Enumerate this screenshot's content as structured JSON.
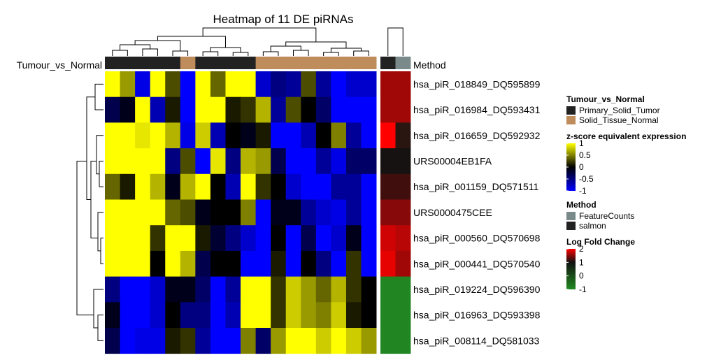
{
  "chart_data": {
    "type": "heatmap",
    "title": "Heatmap of 11 DE piRNAs",
    "rows": [
      "hsa_piR_018849_DQ595899",
      "hsa_piR_016984_DQ593431",
      "hsa_piR_016659_DQ592932",
      "URS00004EB1FA",
      "hsa_piR_001159_DQ571511",
      "URS0000475CEE",
      "hsa_piR_000560_DQ570698",
      "hsa_piR_000441_DQ570540",
      "hsa_piR_019224_DQ596390",
      "hsa_piR_016963_DQ593398",
      "hsa_piR_008114_DQ581033"
    ],
    "z_scores": [
      [
        1.0,
        0.6,
        -0.9,
        1.0,
        0.3,
        -1.0,
        1.0,
        0.4,
        1.0,
        1.0,
        -0.8,
        -0.5,
        -0.6,
        0.3,
        -0.6,
        -1.0,
        -0.8,
        -0.8
      ],
      [
        -0.3,
        -0.1,
        1.0,
        -0.7,
        0.1,
        -1.0,
        1.0,
        1.0,
        0.1,
        0.2,
        0.7,
        -0.6,
        0.3,
        0.0,
        -0.4,
        -1.0,
        -1.0,
        -1.0
      ],
      [
        1.0,
        1.0,
        0.9,
        1.0,
        0.7,
        -0.9,
        0.8,
        -0.7,
        0.0,
        -0.1,
        0.1,
        -1.0,
        -1.0,
        -0.7,
        0.0,
        0.5,
        -0.6,
        -1.0
      ],
      [
        1.0,
        1.0,
        1.0,
        1.0,
        -0.5,
        0.3,
        -1.0,
        0.9,
        -0.5,
        0.7,
        0.6,
        -0.3,
        -1.0,
        -1.0,
        -0.6,
        -0.9,
        -0.4,
        -0.4
      ],
      [
        0.4,
        0.1,
        1.0,
        0.7,
        -0.1,
        0.7,
        1.0,
        0.0,
        -0.7,
        1.0,
        0.2,
        0.0,
        -0.8,
        -1.0,
        -1.0,
        -0.6,
        -0.6,
        -1.0
      ],
      [
        1.0,
        1.0,
        1.0,
        1.0,
        0.4,
        0.3,
        -0.1,
        0.0,
        0.0,
        0.5,
        -1.0,
        -0.1,
        -0.1,
        -0.6,
        -0.8,
        -0.9,
        -0.6,
        -1.0
      ],
      [
        1.0,
        1.0,
        1.0,
        0.2,
        1.0,
        1.0,
        0.1,
        -0.2,
        -0.5,
        -0.8,
        -1.0,
        0.0,
        -1.0,
        -0.3,
        -1.0,
        -0.8,
        -0.1,
        -1.0
      ],
      [
        1.0,
        1.0,
        1.0,
        0.0,
        1.0,
        0.7,
        -0.3,
        0.0,
        0.0,
        -1.0,
        -1.0,
        0.1,
        -1.0,
        0.0,
        -0.5,
        -1.0,
        0.2,
        -1.0
      ],
      [
        -0.5,
        -1.0,
        -1.0,
        -0.8,
        -0.1,
        -0.1,
        -0.4,
        -1.0,
        -0.6,
        1.0,
        1.0,
        0.2,
        0.8,
        0.6,
        0.4,
        0.7,
        0.2,
        0.0
      ],
      [
        -0.1,
        -1.0,
        -1.0,
        -0.8,
        0.0,
        -0.5,
        -0.5,
        -1.0,
        -0.7,
        1.0,
        1.0,
        0.2,
        0.8,
        0.6,
        0.5,
        0.8,
        0.1,
        0.0
      ],
      [
        -0.3,
        -1.0,
        -0.9,
        -0.9,
        0.1,
        0.2,
        -0.6,
        -1.0,
        -1.0,
        0.5,
        -0.4,
        0.6,
        1.0,
        1.0,
        0.8,
        1.0,
        0.8,
        0.6
      ]
    ],
    "tumour_vs_normal": [
      "Primary_Solid_Tumor",
      "Primary_Solid_Tumor",
      "Primary_Solid_Tumor",
      "Primary_Solid_Tumor",
      "Primary_Solid_Tumor",
      "Solid_Tissue_Normal",
      "Primary_Solid_Tumor",
      "Primary_Solid_Tumor",
      "Primary_Solid_Tumor",
      "Primary_Solid_Tumor",
      "Solid_Tissue_Normal",
      "Solid_Tissue_Normal",
      "Solid_Tissue_Normal",
      "Solid_Tissue_Normal",
      "Solid_Tissue_Normal",
      "Solid_Tissue_Normal",
      "Solid_Tissue_Normal",
      "Solid_Tissue_Normal"
    ],
    "methods": [
      "salmon",
      "FeatureCounts"
    ],
    "log_fold_change": [
      [
        1.6,
        1.6
      ],
      [
        1.6,
        1.6
      ],
      [
        2.0,
        0.4
      ],
      [
        0.9,
        0.9
      ],
      [
        1.2,
        1.2
      ],
      [
        1.5,
        1.5
      ],
      [
        1.8,
        1.7
      ],
      [
        1.9,
        1.6
      ],
      [
        -0.8,
        -0.8
      ],
      [
        -0.8,
        -0.8
      ],
      [
        -0.8,
        -0.8
      ]
    ],
    "row_annotation_label": "Tumour_vs_Normal",
    "col_annotation_label": "Method",
    "legends": {
      "group": {
        "title": "Tumour_vs_Normal",
        "items": [
          {
            "label": "Primary_Solid_Tumor",
            "color": "#222222"
          },
          {
            "label": "Solid_Tissue_Normal",
            "color": "#bf8c5c"
          }
        ]
      },
      "zscore": {
        "title": "z-score equivalent expression",
        "ticks": [
          "1",
          "0.5",
          "0",
          "-0.5",
          "-1"
        ],
        "range": [
          -1,
          1
        ]
      },
      "method": {
        "title": "Method",
        "items": [
          {
            "label": "FeatureCounts",
            "color": "#7a8a8a"
          },
          {
            "label": "salmon",
            "color": "#222222"
          }
        ]
      },
      "lfc": {
        "title": "Log Fold Change",
        "ticks": [
          "2",
          "1",
          "0",
          "-1"
        ],
        "range": [
          -1,
          2
        ]
      }
    },
    "colors": {
      "low": "#0000ff",
      "mid": "#000000",
      "high": "#ffff00",
      "lfc_high": "#ff0000",
      "lfc_mid": "#111111",
      "lfc_low": "#228b22"
    }
  }
}
